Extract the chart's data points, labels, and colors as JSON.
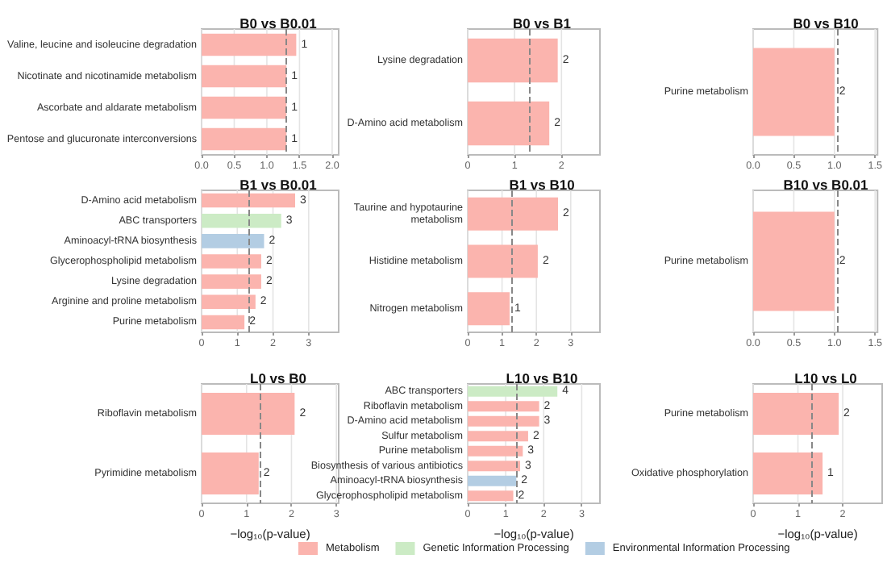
{
  "chart_data": [
    {
      "type": "bar",
      "orientation": "horizontal",
      "title": "B0 vs B0.01",
      "categories": [
        "Valine, leucine and isoleucine degradation",
        "Nicotinate and nicotinamide metabolism",
        "Ascorbate and aldarate metabolism",
        "Pentose and glucuronate interconversions"
      ],
      "values": [
        1.45,
        1.3,
        1.3,
        1.3
      ],
      "colors": [
        "#fbb4ae",
        "#fbb4ae",
        "#fbb4ae",
        "#fbb4ae"
      ],
      "annotations": [
        {
          "text": "1",
          "x": 1.45,
          "y": "Valine, leucine and isoleucine degradation"
        },
        {
          "text": "1",
          "x": 1.3,
          "y": "Nicotinate and nicotinamide metabolism"
        },
        {
          "text": "1",
          "x": 1.3,
          "y": "Ascorbate and aldarate metabolism"
        },
        {
          "text": "1",
          "x": 1.3,
          "y": "Pentose and glucuronate interconversions"
        }
      ],
      "xlim": [
        0,
        2.1
      ],
      "xticks": [
        {
          "value": 0,
          "label": "0.0"
        },
        0.5,
        {
          "value": 1,
          "label": "1.0"
        },
        1.5,
        {
          "value": 2,
          "label": "2.0"
        }
      ],
      "ref_lines": [
        {
          "axis": "x",
          "value": 1.3,
          "color": "#888888",
          "line_style": "dashed"
        }
      ],
      "grid": "x"
    },
    {
      "type": "bar",
      "orientation": "horizontal",
      "title": "B0 vs B1",
      "categories": [
        "Lysine degradation",
        "D-Amino acid metabolism"
      ],
      "values": [
        1.92,
        1.74
      ],
      "colors": [
        "#fbb4ae",
        "#fbb4ae"
      ],
      "annotations": [
        {
          "text": "2",
          "x": 1.92,
          "y": "Lysine degradation"
        },
        {
          "text": "2",
          "x": 1.74,
          "y": "D-Amino acid metabolism"
        }
      ],
      "xlim": [
        0,
        2.82
      ],
      "xticks": [
        0,
        1,
        2
      ],
      "ref_lines": [
        {
          "axis": "x",
          "value": 1.3,
          "color": "#888888",
          "line_style": "dashed"
        }
      ],
      "grid": "x"
    },
    {
      "type": "bar",
      "orientation": "horizontal",
      "title": "B0 vs B10",
      "categories": [
        "Purine metabolism"
      ],
      "values": [
        1.0
      ],
      "colors": [
        "#fbb4ae"
      ],
      "annotations": [
        {
          "text": "2",
          "x": 1.0,
          "y": "Purine metabolism"
        }
      ],
      "xlim": [
        0,
        1.53
      ],
      "xticks": [
        {
          "value": 0,
          "label": "0.0"
        },
        0.5,
        {
          "value": 1,
          "label": "1.0"
        },
        1.5
      ],
      "ref_lines": [
        {
          "axis": "x",
          "value": 1.03,
          "color": "#888888",
          "line_style": "dashed"
        }
      ],
      "grid": "x"
    },
    {
      "type": "bar",
      "orientation": "horizontal",
      "title": "B1 vs B0.01",
      "categories": [
        "D-Amino acid metabolism",
        "ABC transporters",
        "Aminoacyl-tRNA biosynthesis",
        "Glycerophospholipid metabolism",
        "Lysine degradation",
        "Arginine and proline metabolism",
        "Purine metabolism"
      ],
      "values": [
        2.62,
        2.23,
        1.75,
        1.67,
        1.67,
        1.51,
        1.2
      ],
      "colors": [
        "#fbb4ae",
        "#ccebc5",
        "#b3cde3",
        "#fbb4ae",
        "#fbb4ae",
        "#fbb4ae",
        "#fbb4ae"
      ],
      "annotations": [
        {
          "text": "3",
          "x": 2.62,
          "y": "D-Amino acid metabolism"
        },
        {
          "text": "3",
          "x": 2.23,
          "y": "ABC transporters"
        },
        {
          "text": "2",
          "x": 1.75,
          "y": "Aminoacyl-tRNA biosynthesis"
        },
        {
          "text": "2",
          "x": 1.67,
          "y": "Glycerophospholipid metabolism"
        },
        {
          "text": "2",
          "x": 1.67,
          "y": "Lysine degradation"
        },
        {
          "text": "2",
          "x": 1.51,
          "y": "Arginine and proline metabolism"
        },
        {
          "text": "2",
          "x": 1.2,
          "y": "Purine metabolism"
        }
      ],
      "xlim": [
        0,
        3.84
      ],
      "xticks": [
        0,
        1,
        2,
        3
      ],
      "ref_lines": [
        {
          "axis": "x",
          "value": 1.3,
          "color": "#888888",
          "line_style": "dashed"
        }
      ],
      "grid": "x"
    },
    {
      "type": "bar",
      "orientation": "horizontal",
      "title": "B1 vs B10",
      "categories": [
        "Taurine and hypotaurine\nmetabolism",
        "Histidine metabolism",
        "Nitrogen metabolism"
      ],
      "values": [
        2.63,
        2.04,
        1.22
      ],
      "colors": [
        "#fbb4ae",
        "#fbb4ae",
        "#fbb4ae"
      ],
      "annotations": [
        {
          "text": "2",
          "x": 2.63,
          "y": "Taurine and hypotaurine\nmetabolism"
        },
        {
          "text": "2",
          "x": 2.04,
          "y": "Histidine metabolism"
        },
        {
          "text": "1",
          "x": 1.22,
          "y": "Nitrogen metabolism"
        }
      ],
      "xlim": [
        0,
        3.85
      ],
      "xticks": [
        0,
        1,
        2,
        3
      ],
      "ref_lines": [
        {
          "axis": "x",
          "value": 1.3,
          "color": "#888888",
          "line_style": "dashed"
        }
      ],
      "grid": "x"
    },
    {
      "type": "bar",
      "orientation": "horizontal",
      "title": "B10 vs B0.01",
      "categories": [
        "Purine metabolism"
      ],
      "values": [
        1.0
      ],
      "colors": [
        "#fbb4ae"
      ],
      "annotations": [
        {
          "text": "2",
          "x": 1.0,
          "y": "Purine metabolism"
        }
      ],
      "xlim": [
        0,
        1.53
      ],
      "xticks": [
        {
          "value": 0,
          "label": "0.0"
        },
        0.5,
        {
          "value": 1,
          "label": "1.0"
        },
        1.5
      ],
      "ref_lines": [
        {
          "axis": "x",
          "value": 1.03,
          "color": "#888888",
          "line_style": "dashed"
        }
      ],
      "grid": "x"
    },
    {
      "type": "bar",
      "orientation": "horizontal",
      "title": "L0 vs B0",
      "xlabel": "−log₁₀(p-value)",
      "categories": [
        "Riboflavin metabolism",
        "Pyrimidine metabolism"
      ],
      "values": [
        2.07,
        1.27
      ],
      "colors": [
        "#fbb4ae",
        "#fbb4ae"
      ],
      "annotations": [
        {
          "text": "2",
          "x": 2.07,
          "y": "Riboflavin metabolism"
        },
        {
          "text": "2",
          "x": 1.27,
          "y": "Pyrimidine metabolism"
        }
      ],
      "xlim": [
        0,
        3.05
      ],
      "xticks": [
        0,
        1,
        2,
        3
      ],
      "ref_lines": [
        {
          "axis": "x",
          "value": 1.3,
          "color": "#888888",
          "line_style": "dashed"
        }
      ],
      "grid": "x"
    },
    {
      "type": "bar",
      "orientation": "horizontal",
      "title": "L10 vs B10",
      "xlabel": "−log₁₀(p-value)",
      "categories": [
        "ABC transporters",
        "Riboflavin metabolism",
        "D-Amino acid metabolism",
        "Sulfur metabolism",
        "Purine metabolism",
        "Biosynthesis of various antibiotics",
        "Aminoacyl-tRNA biosynthesis",
        "Glycerophospholipid metabolism"
      ],
      "series": [
        {
          "name": "Metabolism",
          "color": "#fbb4ae",
          "values": [
            null,
            1.88,
            1.88,
            1.59,
            1.45,
            1.38,
            null,
            1.2
          ]
        },
        {
          "name": "Genetic Information Processing",
          "color": "#ccebc5",
          "values": [
            2.36,
            null,
            null,
            null,
            null,
            null,
            null,
            null
          ]
        },
        {
          "name": "Environmental Information Processing",
          "color": "#b3cde3",
          "values": [
            null,
            null,
            null,
            null,
            null,
            null,
            1.28,
            null
          ]
        }
      ],
      "annotations": [
        {
          "text": "4",
          "x": 2.36,
          "y": "ABC transporters"
        },
        {
          "text": "2",
          "x": 1.88,
          "y": "Riboflavin metabolism"
        },
        {
          "text": "3",
          "x": 1.88,
          "y": "D-Amino acid metabolism"
        },
        {
          "text": "2",
          "x": 1.59,
          "y": "Sulfur metabolism"
        },
        {
          "text": "3",
          "x": 1.45,
          "y": "Purine metabolism"
        },
        {
          "text": "3",
          "x": 1.38,
          "y": "Biosynthesis of various antibiotics"
        },
        {
          "text": "2",
          "x": 1.28,
          "y": "Aminoacyl-tRNA biosynthesis"
        },
        {
          "text": "2",
          "x": 1.2,
          "y": "Glycerophospholipid metabolism"
        }
      ],
      "xlim": [
        0,
        3.48
      ],
      "xticks": [
        0,
        1,
        2,
        3
      ],
      "ref_lines": [
        {
          "axis": "x",
          "value": 1.3,
          "color": "#888888",
          "line_style": "dashed"
        }
      ],
      "grid": "x",
      "legend": "bottom"
    },
    {
      "type": "bar",
      "orientation": "horizontal",
      "title": "L10 vs L0",
      "xlabel": "−log₁₀(p-value)",
      "categories": [
        "Purine metabolism",
        "Oxidative phosphorylation"
      ],
      "values": [
        1.91,
        1.55
      ],
      "colors": [
        "#fbb4ae",
        "#fbb4ae"
      ],
      "annotations": [
        {
          "text": "2",
          "x": 1.91,
          "y": "Purine metabolism"
        },
        {
          "text": "1",
          "x": 1.55,
          "y": "Oxidative phosphorylation"
        }
      ],
      "xlim": [
        0,
        2.88
      ],
      "xticks": [
        0,
        1,
        2
      ],
      "ref_lines": [
        {
          "axis": "x",
          "value": 1.3,
          "color": "#888888",
          "line_style": "dashed"
        }
      ],
      "grid": "x"
    }
  ]
}
